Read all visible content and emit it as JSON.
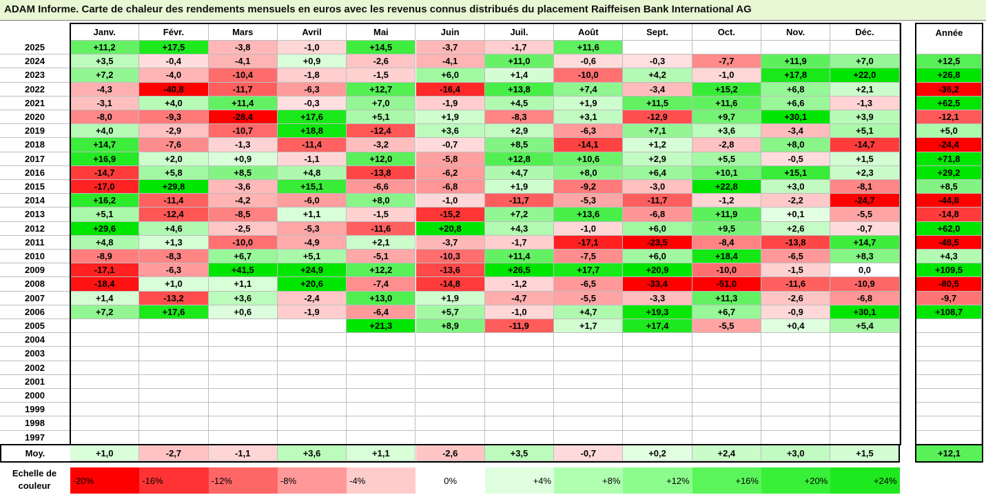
{
  "title": "ADAM Informe. Carte de chaleur des rendements mensuels en euros avec les revenus connus distribués du placement Raiffeisen Bank International AG",
  "chart_data": {
    "type": "heatmap",
    "title": "ADAM Informe. Carte de chaleur des rendements mensuels en euros avec les revenus connus distribués du placement Raiffeisen Bank International AG",
    "months": [
      "Janv.",
      "Févr.",
      "Mars",
      "Avril",
      "Mai",
      "Juin",
      "Juil.",
      "Août",
      "Sept.",
      "Oct.",
      "Nov.",
      "Déc."
    ],
    "year_header": "Année",
    "rows": [
      {
        "year": "2025",
        "values": [
          "+11,2",
          "+17,5",
          "-3,8",
          "-1,0",
          "+14,5",
          "-3,7",
          "-1,7",
          "+11,6",
          "",
          "",
          "",
          ""
        ],
        "annual": ""
      },
      {
        "year": "2024",
        "values": [
          "+3,5",
          "-0,4",
          "-4,1",
          "+0,9",
          "-2,6",
          "-4,1",
          "+11,0",
          "-0,6",
          "-0,3",
          "-7,7",
          "+11,9",
          "+7,0"
        ],
        "annual": "+12,5"
      },
      {
        "year": "2023",
        "values": [
          "+7,2",
          "-4,0",
          "-10,4",
          "-1,8",
          "-1,5",
          "+6,0",
          "+1,4",
          "-10,0",
          "+4,2",
          "-1,0",
          "+17,8",
          "+22,0"
        ],
        "annual": "+26,8"
      },
      {
        "year": "2022",
        "values": [
          "-4,3",
          "-40,8",
          "-11,7",
          "-6,3",
          "+12,7",
          "-16,4",
          "+13,8",
          "+7,4",
          "-3,4",
          "+15,2",
          "+6,8",
          "+2,1"
        ],
        "annual": "-36,2"
      },
      {
        "year": "2021",
        "values": [
          "-3,1",
          "+4,0",
          "+11,4",
          "-0,3",
          "+7,0",
          "-1,9",
          "+4,5",
          "+1,9",
          "+11,5",
          "+11,6",
          "+6,6",
          "-1,3"
        ],
        "annual": "+62,5"
      },
      {
        "year": "2020",
        "values": [
          "-8,0",
          "-9,3",
          "-28,4",
          "+17,6",
          "+5,1",
          "+1,9",
          "-8,3",
          "+3,1",
          "-12,9",
          "+9,7",
          "+30,1",
          "+3,9"
        ],
        "annual": "-12,1"
      },
      {
        "year": "2019",
        "values": [
          "+4,0",
          "-2,9",
          "-10,7",
          "+18,8",
          "-12,4",
          "+3,6",
          "+2,9",
          "-6,3",
          "+7,1",
          "+3,6",
          "-3,4",
          "+5,1"
        ],
        "annual": "+5,0"
      },
      {
        "year": "2018",
        "values": [
          "+14,7",
          "-7,6",
          "-1,3",
          "-11,4",
          "-3,2",
          "-0,7",
          "+8,5",
          "-14,1",
          "+1,2",
          "-2,8",
          "+8,0",
          "-14,7"
        ],
        "annual": "-24,4"
      },
      {
        "year": "2017",
        "values": [
          "+16,9",
          "+2,0",
          "+0,9",
          "-1,1",
          "+12,0",
          "-5,8",
          "+12,8",
          "+10,6",
          "+2,9",
          "+5,5",
          "-0,5",
          "+1,5"
        ],
        "annual": "+71,8"
      },
      {
        "year": "2016",
        "values": [
          "-14,7",
          "+5,8",
          "+8,5",
          "+4,8",
          "-13,8",
          "-6,2",
          "+4,7",
          "+8,0",
          "+6,4",
          "+10,1",
          "+15,1",
          "+2,3"
        ],
        "annual": "+29,2"
      },
      {
        "year": "2015",
        "values": [
          "-17,0",
          "+29,8",
          "-3,6",
          "+15,1",
          "-6,6",
          "-6,8",
          "+1,9",
          "-9,2",
          "-3,0",
          "+22,8",
          "+3,0",
          "-8,1"
        ],
        "annual": "+8,5"
      },
      {
        "year": "2014",
        "values": [
          "+16,2",
          "-11,4",
          "-4,2",
          "-6,0",
          "+8,0",
          "-1,0",
          "-11,7",
          "-5,3",
          "-11,7",
          "-1,2",
          "-2,2",
          "-24,7"
        ],
        "annual": "-44,8"
      },
      {
        "year": "2013",
        "values": [
          "+5,1",
          "-12,4",
          "-8,5",
          "+1,1",
          "-1,5",
          "-15,2",
          "+7,2",
          "+13,6",
          "-6,8",
          "+11,9",
          "+0,1",
          "-5,5"
        ],
        "annual": "-14,8"
      },
      {
        "year": "2012",
        "values": [
          "+29,6",
          "+4,6",
          "-2,5",
          "-5,3",
          "-11,6",
          "+20,8",
          "+4,3",
          "-1,0",
          "+6,0",
          "+9,5",
          "+2,6",
          "-0,7"
        ],
        "annual": "+62,0"
      },
      {
        "year": "2011",
        "values": [
          "+4,8",
          "+1,3",
          "-10,0",
          "-4,9",
          "+2,1",
          "-3,7",
          "-1,7",
          "-17,1",
          "-23,5",
          "-8,4",
          "-13,8",
          "+14,7"
        ],
        "annual": "-48,5"
      },
      {
        "year": "2010",
        "values": [
          "-8,9",
          "-8,3",
          "+6,7",
          "+5,1",
          "-5,1",
          "-10,3",
          "+11,4",
          "-7,5",
          "+6,0",
          "+18,4",
          "-6,5",
          "+8,3"
        ],
        "annual": "+4,3"
      },
      {
        "year": "2009",
        "values": [
          "-17,1",
          "-6,3",
          "+41,5",
          "+24,9",
          "+12,2",
          "-13,6",
          "+26,5",
          "+17,7",
          "+20,9",
          "-10,0",
          "-1,5",
          "0,0"
        ],
        "annual": "+109,5"
      },
      {
        "year": "2008",
        "values": [
          "-18,4",
          "+1,0",
          "+1,1",
          "+20,6",
          "-7,4",
          "-14,8",
          "-1,2",
          "-6,5",
          "-33,4",
          "-51,0",
          "-11,6",
          "-10,9"
        ],
        "annual": "-80,5"
      },
      {
        "year": "2007",
        "values": [
          "+1,4",
          "-13,2",
          "+3,6",
          "-2,4",
          "+13,0",
          "+1,9",
          "-4,7",
          "-5,5",
          "-3,3",
          "+11,3",
          "-2,6",
          "-6,8"
        ],
        "annual": "-9,7"
      },
      {
        "year": "2006",
        "values": [
          "+7,2",
          "+17,6",
          "+0,6",
          "-1,9",
          "-6,4",
          "+5,7",
          "-1,0",
          "+4,7",
          "+19,3",
          "+6,7",
          "-0,9",
          "+30,1"
        ],
        "annual": "+108,7"
      },
      {
        "year": "2005",
        "values": [
          "",
          "",
          "",
          "",
          "+21,3",
          "+8,9",
          "-11,9",
          "+1,7",
          "+17,4",
          "-5,5",
          "+0,4",
          "+5,4"
        ],
        "annual": ""
      },
      {
        "year": "2004",
        "values": [
          "",
          "",
          "",
          "",
          "",
          "",
          "",
          "",
          "",
          "",
          "",
          ""
        ],
        "annual": ""
      },
      {
        "year": "2003",
        "values": [
          "",
          "",
          "",
          "",
          "",
          "",
          "",
          "",
          "",
          "",
          "",
          ""
        ],
        "annual": ""
      },
      {
        "year": "2002",
        "values": [
          "",
          "",
          "",
          "",
          "",
          "",
          "",
          "",
          "",
          "",
          "",
          ""
        ],
        "annual": ""
      },
      {
        "year": "2001",
        "values": [
          "",
          "",
          "",
          "",
          "",
          "",
          "",
          "",
          "",
          "",
          "",
          ""
        ],
        "annual": ""
      },
      {
        "year": "2000",
        "values": [
          "",
          "",
          "",
          "",
          "",
          "",
          "",
          "",
          "",
          "",
          "",
          ""
        ],
        "annual": ""
      },
      {
        "year": "1999",
        "values": [
          "",
          "",
          "",
          "",
          "",
          "",
          "",
          "",
          "",
          "",
          "",
          ""
        ],
        "annual": ""
      },
      {
        "year": "1998",
        "values": [
          "",
          "",
          "",
          "",
          "",
          "",
          "",
          "",
          "",
          "",
          "",
          ""
        ],
        "annual": ""
      },
      {
        "year": "1997",
        "values": [
          "",
          "",
          "",
          "",
          "",
          "",
          "",
          "",
          "",
          "",
          "",
          ""
        ],
        "annual": ""
      }
    ],
    "average": {
      "label": "Moy.",
      "values": [
        "+1,0",
        "-2,7",
        "-1,1",
        "+3,6",
        "+1,1",
        "-2,6",
        "+3,5",
        "-0,7",
        "+0,2",
        "+2,4",
        "+3,0",
        "+1,5"
      ],
      "annual": "+12,1"
    },
    "color_scale": {
      "label": "Echelle de couleur",
      "steps": [
        {
          "text": "-20%",
          "value": -20,
          "color": "#ff0000",
          "align": "left"
        },
        {
          "text": "-16%",
          "value": -16,
          "color": "#ff3333",
          "align": "left"
        },
        {
          "text": "-12%",
          "value": -12,
          "color": "#ff6666",
          "align": "left"
        },
        {
          "text": "-8%",
          "value": -8,
          "color": "#ff9999",
          "align": "left"
        },
        {
          "text": "-4%",
          "value": -4,
          "color": "#ffcccc",
          "align": "left"
        },
        {
          "text": "0%",
          "value": 0,
          "color": "#ffffff",
          "align": "center"
        },
        {
          "text": "+4%",
          "value": 4,
          "color": "#dfffdf",
          "align": "right"
        },
        {
          "text": "+8%",
          "value": 8,
          "color": "#b0ffb0",
          "align": "right"
        },
        {
          "text": "+12%",
          "value": 12,
          "color": "#8cfd8c",
          "align": "right"
        },
        {
          "text": "+16%",
          "value": 16,
          "color": "#5af55a",
          "align": "right"
        },
        {
          "text": "+20%",
          "value": 20,
          "color": "#38f038",
          "align": "right"
        },
        {
          "text": "+24%",
          "value": 24,
          "color": "#1ee81e",
          "align": "right"
        }
      ]
    }
  }
}
